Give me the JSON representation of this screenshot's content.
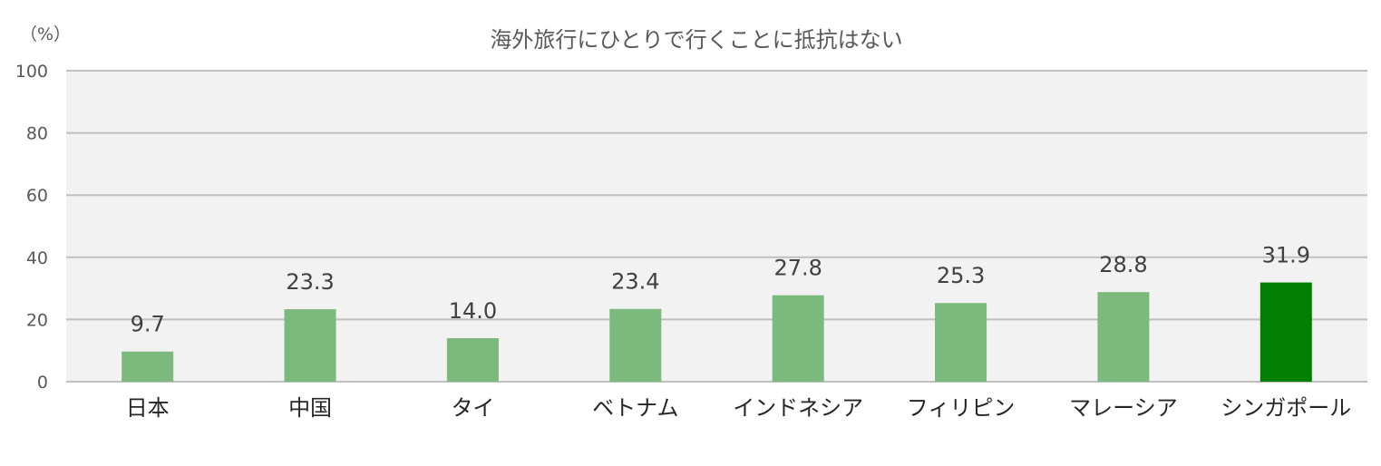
{
  "chart_data": {
    "type": "bar",
    "title": "海外旅行にひとりで行くことに抵抗はない",
    "unit_label": "（%）",
    "categories": [
      "日本",
      "中国",
      "タイ",
      "ベトナム",
      "インドネシア",
      "フィリピン",
      "マレーシア",
      "シンガポール"
    ],
    "values": [
      9.7,
      23.3,
      14.0,
      23.4,
      27.8,
      25.3,
      28.8,
      31.9
    ],
    "data_labels": [
      "9.7",
      "23.3",
      "14.0",
      "23.4",
      "27.8",
      "25.3",
      "28.8",
      "31.9"
    ],
    "ylim": [
      0,
      100
    ],
    "yticks": [
      "0",
      "20",
      "40",
      "60",
      "80",
      "100"
    ],
    "grid": true,
    "colors": {
      "bar": "#7cb97c",
      "highlight_bar": "#007f00",
      "plot_background": "#f2f2f2",
      "gridline": "#bfbfbf"
    },
    "highlight_index": 7
  }
}
